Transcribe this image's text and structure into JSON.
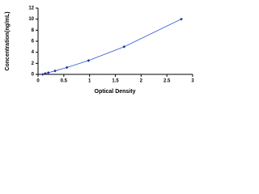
{
  "chart_data": {
    "type": "scatter",
    "x_label": "Optical Density",
    "y_label": "Concentration(ng/mL)",
    "x": [
      0.09,
      0.14,
      0.2,
      0.33,
      0.56,
      0.98,
      1.67,
      2.78
    ],
    "values": [
      0,
      0.16,
      0.31,
      0.63,
      1.25,
      2.5,
      5,
      10
    ],
    "color": "#1a2fa8",
    "line_color": "#3355cc",
    "xlim": [
      0,
      3
    ],
    "xticks": [
      0,
      0.5,
      1,
      1.5,
      2,
      2.5,
      3
    ],
    "ylim": [
      0,
      12
    ],
    "yticks": [
      0,
      2,
      4,
      6,
      8,
      10,
      12
    ]
  }
}
